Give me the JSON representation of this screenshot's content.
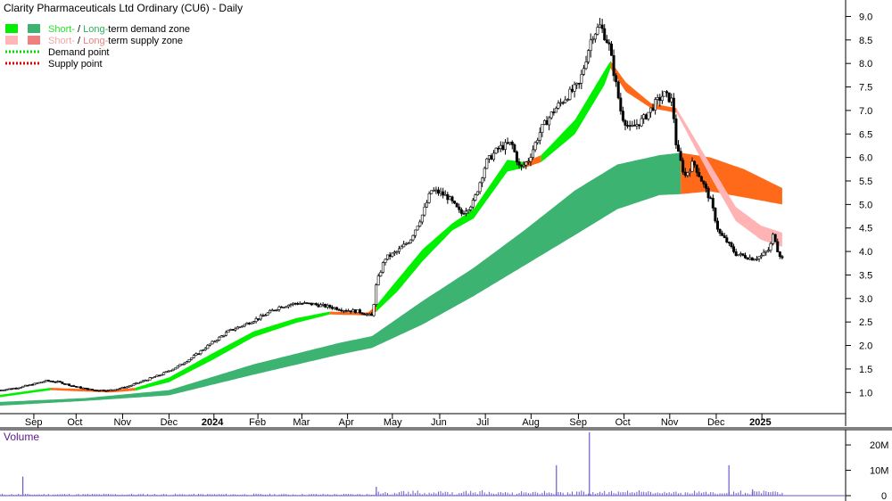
{
  "chart_data": {
    "type": "candlestick",
    "title": "Clarity Pharmaceuticals Ltd Ordinary (CU6) - Daily",
    "legend": [
      {
        "parts": [
          {
            "text": "Short-",
            "color": "#29e629"
          },
          {
            "text": " / ",
            "color": "#000000"
          },
          {
            "text": "Long-",
            "color": "#2fb05a"
          },
          {
            "text": "term demand zone",
            "color": "#000000"
          }
        ],
        "swatch1": "#00ee00",
        "swatch2": "#3cb371"
      },
      {
        "parts": [
          {
            "text": "Short-",
            "color": "#f4a6a6"
          },
          {
            "text": " / ",
            "color": "#000000"
          },
          {
            "text": "Long-",
            "color": "#f08080"
          },
          {
            "text": "term supply zone",
            "color": "#000000"
          }
        ],
        "swatch1": "#ffb6b6",
        "swatch2": "#f08080"
      },
      {
        "label": "Demand point",
        "dotted": "#00dd00"
      },
      {
        "label": "Supply point",
        "dotted": "#dd0000"
      }
    ],
    "y_ticks": [
      1.0,
      1.5,
      2.0,
      2.5,
      3.0,
      3.5,
      4.0,
      4.5,
      5.0,
      5.5,
      6.0,
      6.5,
      7.0,
      7.5,
      8.0,
      8.5,
      9.0
    ],
    "ylim": [
      0.55,
      9.35
    ],
    "x_labels": [
      {
        "label": "Sep",
        "bold": false,
        "x": 0.04
      },
      {
        "label": "Oct",
        "bold": false,
        "x": 0.09
      },
      {
        "label": "Nov",
        "bold": false,
        "x": 0.145
      },
      {
        "label": "Dec",
        "bold": false,
        "x": 0.2
      },
      {
        "label": "2024",
        "bold": true,
        "x": 0.253
      },
      {
        "label": "Feb",
        "bold": false,
        "x": 0.305
      },
      {
        "label": "Mar",
        "bold": false,
        "x": 0.357
      },
      {
        "label": "Apr",
        "bold": false,
        "x": 0.411
      },
      {
        "label": "May",
        "bold": false,
        "x": 0.464
      },
      {
        "label": "Jun",
        "bold": false,
        "x": 0.52
      },
      {
        "label": "Jul",
        "bold": false,
        "x": 0.574
      },
      {
        "label": "Aug",
        "bold": false,
        "x": 0.628
      },
      {
        "label": "Sep",
        "bold": false,
        "x": 0.684
      },
      {
        "label": "Oct",
        "bold": false,
        "x": 0.738
      },
      {
        "label": "Nov",
        "bold": false,
        "x": 0.792
      },
      {
        "label": "Dec",
        "bold": false,
        "x": 0.847
      },
      {
        "label": "2025",
        "bold": true,
        "x": 0.901
      }
    ],
    "price_path": [
      [
        0.0,
        1.05
      ],
      [
        0.02,
        1.1
      ],
      [
        0.04,
        1.18
      ],
      [
        0.055,
        1.25
      ],
      [
        0.07,
        1.22
      ],
      [
        0.09,
        1.12
      ],
      [
        0.11,
        1.05
      ],
      [
        0.13,
        1.05
      ],
      [
        0.15,
        1.12
      ],
      [
        0.17,
        1.25
      ],
      [
        0.19,
        1.38
      ],
      [
        0.21,
        1.55
      ],
      [
        0.23,
        1.78
      ],
      [
        0.25,
        2.05
      ],
      [
        0.27,
        2.3
      ],
      [
        0.29,
        2.45
      ],
      [
        0.31,
        2.62
      ],
      [
        0.33,
        2.82
      ],
      [
        0.35,
        2.9
      ],
      [
        0.37,
        2.88
      ],
      [
        0.39,
        2.82
      ],
      [
        0.41,
        2.75
      ],
      [
        0.425,
        2.72
      ],
      [
        0.44,
        2.62
      ],
      [
        0.445,
        3.3
      ],
      [
        0.455,
        3.85
      ],
      [
        0.47,
        4.0
      ],
      [
        0.485,
        4.25
      ],
      [
        0.5,
        4.8
      ],
      [
        0.51,
        5.3
      ],
      [
        0.52,
        5.25
      ],
      [
        0.53,
        5.15
      ],
      [
        0.545,
        4.8
      ],
      [
        0.56,
        5.05
      ],
      [
        0.575,
        5.9
      ],
      [
        0.59,
        6.2
      ],
      [
        0.605,
        6.3
      ],
      [
        0.615,
        5.75
      ],
      [
        0.625,
        5.95
      ],
      [
        0.64,
        6.6
      ],
      [
        0.655,
        7.0
      ],
      [
        0.67,
        7.3
      ],
      [
        0.685,
        7.55
      ],
      [
        0.7,
        8.6
      ],
      [
        0.71,
        8.8
      ],
      [
        0.72,
        8.4
      ],
      [
        0.728,
        7.6
      ],
      [
        0.735,
        6.9
      ],
      [
        0.745,
        6.6
      ],
      [
        0.76,
        6.8
      ],
      [
        0.775,
        7.15
      ],
      [
        0.785,
        7.35
      ],
      [
        0.795,
        7.2
      ],
      [
        0.8,
        6.2
      ],
      [
        0.81,
        5.6
      ],
      [
        0.82,
        5.9
      ],
      [
        0.83,
        5.5
      ],
      [
        0.84,
        5.1
      ],
      [
        0.85,
        4.4
      ],
      [
        0.86,
        4.2
      ],
      [
        0.87,
        3.95
      ],
      [
        0.88,
        3.9
      ],
      [
        0.89,
        3.85
      ],
      [
        0.9,
        3.9
      ],
      [
        0.91,
        4.05
      ],
      [
        0.915,
        4.4
      ],
      [
        0.92,
        4.0
      ],
      [
        0.925,
        3.85
      ]
    ],
    "short_term_zone": [
      {
        "x": 0.0,
        "top": 0.95,
        "bot": 0.9,
        "kind": "demand"
      },
      {
        "x": 0.06,
        "top": 1.1,
        "bot": 1.05,
        "kind": "supply"
      },
      {
        "x": 0.13,
        "top": 1.05,
        "bot": 1.0,
        "kind": "supply"
      },
      {
        "x": 0.16,
        "top": 1.1,
        "bot": 1.04,
        "kind": "demand"
      },
      {
        "x": 0.2,
        "top": 1.32,
        "bot": 1.22,
        "kind": "demand"
      },
      {
        "x": 0.25,
        "top": 1.82,
        "bot": 1.68,
        "kind": "demand"
      },
      {
        "x": 0.3,
        "top": 2.3,
        "bot": 2.18,
        "kind": "demand"
      },
      {
        "x": 0.35,
        "top": 2.58,
        "bot": 2.48,
        "kind": "demand"
      },
      {
        "x": 0.39,
        "top": 2.72,
        "bot": 2.66,
        "kind": "supply"
      },
      {
        "x": 0.435,
        "top": 2.7,
        "bot": 2.64,
        "kind": "supply"
      },
      {
        "x": 0.445,
        "top": 2.85,
        "bot": 2.72,
        "kind": "demand"
      },
      {
        "x": 0.47,
        "top": 3.4,
        "bot": 3.15,
        "kind": "demand"
      },
      {
        "x": 0.5,
        "top": 4.05,
        "bot": 3.8,
        "kind": "demand"
      },
      {
        "x": 0.535,
        "top": 4.6,
        "bot": 4.45,
        "kind": "demand"
      },
      {
        "x": 0.56,
        "top": 4.9,
        "bot": 4.7,
        "kind": "demand"
      },
      {
        "x": 0.6,
        "top": 5.95,
        "bot": 5.7,
        "kind": "demand"
      },
      {
        "x": 0.62,
        "top": 5.9,
        "bot": 5.78,
        "kind": "supply"
      },
      {
        "x": 0.64,
        "top": 6.05,
        "bot": 5.9,
        "kind": "demand"
      },
      {
        "x": 0.68,
        "top": 6.8,
        "bot": 6.5,
        "kind": "demand"
      },
      {
        "x": 0.715,
        "top": 7.85,
        "bot": 7.55,
        "kind": "demand"
      },
      {
        "x": 0.722,
        "top": 8.05,
        "bot": 7.9,
        "kind": "supply"
      },
      {
        "x": 0.74,
        "top": 7.6,
        "bot": 7.4,
        "kind": "supply"
      },
      {
        "x": 0.77,
        "top": 7.15,
        "bot": 7.05,
        "kind": "supply"
      },
      {
        "x": 0.8,
        "top": 7.05,
        "bot": 6.95,
        "kind": "pink"
      },
      {
        "x": 0.84,
        "top": 5.85,
        "bot": 5.6,
        "kind": "pink"
      },
      {
        "x": 0.87,
        "top": 4.95,
        "bot": 4.65,
        "kind": "pink"
      },
      {
        "x": 0.9,
        "top": 4.55,
        "bot": 4.25,
        "kind": "pink"
      },
      {
        "x": 0.925,
        "top": 4.4,
        "bot": 4.1,
        "kind": "pink"
      }
    ],
    "long_term_zone": [
      {
        "x": 0.0,
        "top": 0.8,
        "bot": 0.72,
        "kind": "demand"
      },
      {
        "x": 0.1,
        "top": 0.88,
        "bot": 0.82,
        "kind": "demand"
      },
      {
        "x": 0.2,
        "top": 1.05,
        "bot": 0.94,
        "kind": "demand"
      },
      {
        "x": 0.3,
        "top": 1.6,
        "bot": 1.38,
        "kind": "demand"
      },
      {
        "x": 0.4,
        "top": 2.05,
        "bot": 1.8,
        "kind": "demand"
      },
      {
        "x": 0.44,
        "top": 2.2,
        "bot": 1.95,
        "kind": "demand"
      },
      {
        "x": 0.5,
        "top": 2.95,
        "bot": 2.45,
        "kind": "demand"
      },
      {
        "x": 0.56,
        "top": 3.65,
        "bot": 3.05,
        "kind": "demand"
      },
      {
        "x": 0.62,
        "top": 4.45,
        "bot": 3.7,
        "kind": "demand"
      },
      {
        "x": 0.68,
        "top": 5.3,
        "bot": 4.35,
        "kind": "demand"
      },
      {
        "x": 0.73,
        "top": 5.85,
        "bot": 4.9,
        "kind": "demand"
      },
      {
        "x": 0.78,
        "top": 6.05,
        "bot": 5.2,
        "kind": "demand"
      },
      {
        "x": 0.805,
        "top": 6.1,
        "bot": 5.22,
        "kind": "orange"
      },
      {
        "x": 0.84,
        "top": 6.0,
        "bot": 5.28,
        "kind": "orange"
      },
      {
        "x": 0.88,
        "top": 5.75,
        "bot": 5.15,
        "kind": "orange"
      },
      {
        "x": 0.925,
        "top": 5.35,
        "bot": 5.0,
        "kind": "orange"
      }
    ],
    "volume": {
      "title": "Volume",
      "y_ticks": [
        {
          "label": "20M",
          "v": 20
        },
        {
          "label": "10M",
          "v": 10
        },
        {
          "label": "0",
          "v": 0
        }
      ],
      "ylim": [
        0,
        26
      ],
      "spikes": [
        [
          0.027,
          7.5
        ],
        [
          0.697,
          25
        ],
        [
          0.658,
          12
        ],
        [
          0.862,
          12
        ],
        [
          0.445,
          3.5
        ],
        [
          0.89,
          2.5
        ]
      ]
    }
  }
}
